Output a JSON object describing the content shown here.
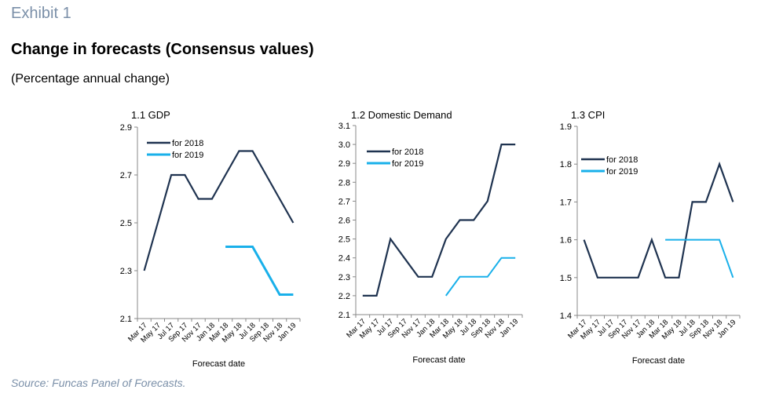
{
  "header": {
    "exhibit": "Exhibit 1",
    "title": "Change in forecasts (Consensus values)",
    "subtitle": "(Percentage annual change)"
  },
  "footer": {
    "source": "Source: Funcas Panel of Forecasts."
  },
  "colors": {
    "for2018": "#1f3350",
    "for2019": "#19b0ea",
    "axis": "#888888"
  },
  "chart_data": [
    {
      "type": "line",
      "title": "1.1 GDP",
      "xlabel": "Forecast date",
      "ylabel": "",
      "categories": [
        "Mar 17",
        "May 17",
        "Jul 17",
        "Sep 17",
        "Nov 17",
        "Jan 18",
        "Mar 18",
        "May 18",
        "Jul 18",
        "Sep 18",
        "Nov 18",
        "Jan 19"
      ],
      "ylim": [
        2.1,
        2.9
      ],
      "yticks": [
        "2.9",
        "2.7",
        "2.5",
        "2.3",
        "2.1"
      ],
      "legend": "top-left",
      "series": [
        {
          "name": "for 2018",
          "values": [
            2.3,
            2.5,
            2.7,
            2.7,
            2.6,
            2.6,
            2.7,
            2.8,
            2.8,
            2.7,
            2.6,
            2.5
          ]
        },
        {
          "name": "for 2019",
          "values": [
            null,
            null,
            null,
            null,
            null,
            null,
            2.4,
            2.4,
            2.4,
            2.3,
            2.2,
            2.2
          ]
        }
      ]
    },
    {
      "type": "line",
      "title": "1.2 Domestic Demand",
      "xlabel": "Forecast date",
      "ylabel": "",
      "categories": [
        "Mar 17",
        "May 17",
        "Jul 17",
        "Sep 17",
        "Nov 17",
        "Jan 18",
        "Mar 18",
        "May 18",
        "Jul 18",
        "Sep 18",
        "Nov 18",
        "Jan 19"
      ],
      "ylim": [
        2.1,
        3.1
      ],
      "yticks": [
        "3.1",
        "3.0",
        "2.9",
        "2.8",
        "2.7",
        "2.6",
        "2.5",
        "2.4",
        "2.3",
        "2.2",
        "2.1"
      ],
      "legend": "top-left",
      "series": [
        {
          "name": "for 2018",
          "values": [
            2.2,
            2.2,
            2.5,
            2.4,
            2.3,
            2.3,
            2.5,
            2.6,
            2.6,
            2.7,
            3.0,
            3.0
          ]
        },
        {
          "name": "for 2019",
          "values": [
            null,
            null,
            null,
            null,
            null,
            null,
            2.2,
            2.3,
            2.3,
            2.3,
            2.4,
            2.4
          ]
        }
      ]
    },
    {
      "type": "line",
      "title": "1.3 CPI",
      "xlabel": "Forecast date",
      "ylabel": "",
      "categories": [
        "Mar 17",
        "May 17",
        "Jul 17",
        "Sep 17",
        "Nov 17",
        "Jan 18",
        "Mar 18",
        "May 18",
        "Jul 18",
        "Sep 18",
        "Nov 18",
        "Jan 19"
      ],
      "ylim": [
        1.4,
        1.9
      ],
      "yticks": [
        "1.9",
        "1.8",
        "1.7",
        "1.6",
        "1.5",
        "1.4"
      ],
      "legend": "top-left",
      "series": [
        {
          "name": "for 2018",
          "values": [
            1.6,
            1.5,
            1.5,
            1.5,
            1.5,
            1.6,
            1.5,
            1.5,
            1.7,
            1.7,
            1.8,
            1.7
          ]
        },
        {
          "name": "for 2019",
          "values": [
            null,
            null,
            null,
            null,
            null,
            null,
            1.6,
            1.6,
            1.6,
            1.6,
            1.6,
            1.5
          ]
        }
      ]
    }
  ]
}
